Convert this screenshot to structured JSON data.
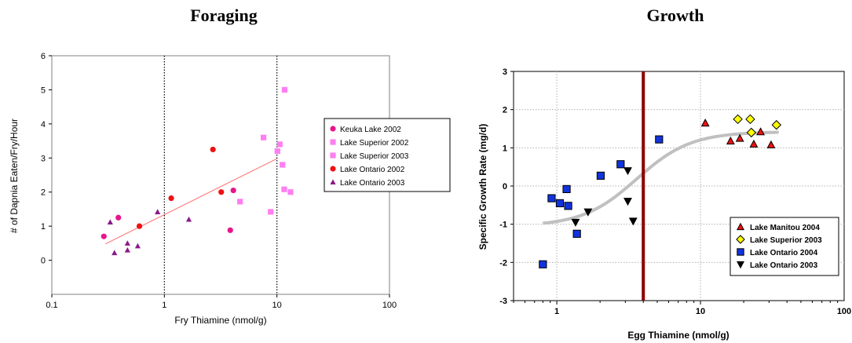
{
  "chart_data": [
    {
      "type": "scatter",
      "title": "Foraging",
      "xlabel": "Fry Thiamine (nmol/g)",
      "ylabel": "# of Dapnia Eaten/Fry/Hour",
      "xscale": "log",
      "xlim": [
        0.1,
        100
      ],
      "ylim": [
        -1,
        6
      ],
      "xticks": [
        "0.1",
        "1",
        "10",
        "100"
      ],
      "yticks": [
        "0",
        "1",
        "2",
        "3",
        "4",
        "5",
        "6"
      ],
      "grid": false,
      "legend_position": "right",
      "reference_lines_x": [
        1,
        10
      ],
      "trendline": {
        "x": [
          0.3,
          10
        ],
        "y": [
          0.48,
          2.98
        ],
        "color": "#ff6b6b"
      },
      "series": [
        {
          "name": "Keuka Lake 2002",
          "marker": "circle",
          "color": "#e8158a",
          "points": [
            [
              0.29,
              0.7
            ],
            [
              0.39,
              1.25
            ],
            [
              4.1,
              2.05
            ],
            [
              3.85,
              0.88
            ]
          ]
        },
        {
          "name": "Lake Superior 2002",
          "marker": "square",
          "color": "#ff7ff0",
          "points": [
            [
              7.6,
              3.6
            ],
            [
              4.7,
              1.72
            ],
            [
              11.2,
              2.8
            ],
            [
              11.6,
              2.08
            ],
            [
              13.2,
              2.0
            ],
            [
              8.8,
              1.42
            ]
          ]
        },
        {
          "name": "Lake Superior 2003",
          "marker": "square",
          "color": "#ff7ff0",
          "points": [
            [
              11.7,
              5.0
            ],
            [
              10.6,
              3.4
            ],
            [
              10.1,
              3.2
            ]
          ]
        },
        {
          "name": "Lake Ontario 2002",
          "marker": "circle",
          "color": "#ee1111",
          "points": [
            [
              2.7,
              3.25
            ],
            [
              1.15,
              1.82
            ],
            [
              3.2,
              2.0
            ],
            [
              0.6,
              1.0
            ]
          ]
        },
        {
          "name": "Lake Ontario 2003",
          "marker": "triangle",
          "color": "#8a1a8a",
          "points": [
            [
              0.33,
              1.12
            ],
            [
              0.87,
              1.42
            ],
            [
              1.65,
              1.2
            ],
            [
              0.47,
              0.5
            ],
            [
              0.58,
              0.42
            ],
            [
              0.36,
              0.22
            ],
            [
              0.47,
              0.3
            ]
          ]
        }
      ]
    },
    {
      "type": "scatter",
      "title": "Growth",
      "xlabel": "Egg Thiamine (nmol/g)",
      "ylabel": "Specific Growth Rate (mg/d)",
      "xscale": "log",
      "xlim": [
        0.5,
        100
      ],
      "ylim": [
        -3,
        3
      ],
      "xticks": [
        "1",
        "10",
        "100"
      ],
      "yticks": [
        "-3",
        "-2",
        "-1",
        "0",
        "1",
        "2",
        "3"
      ],
      "grid": true,
      "legend_position": "bottom-right",
      "threshold_x": 4.0,
      "fit_curve": {
        "color": "#c0c0c0",
        "lower": -1.05,
        "upper": 1.42,
        "midpoint": 3.6,
        "steepness": 2.3,
        "x_range": [
          0.8,
          35
        ]
      },
      "series": [
        {
          "name": "Lake Manitou 2004",
          "marker": "triangle",
          "color": "#ee1111",
          "points": [
            [
              10.8,
              1.65
            ],
            [
              16.2,
              1.18
            ],
            [
              18.8,
              1.25
            ],
            [
              23.5,
              1.1
            ],
            [
              26.2,
              1.42
            ],
            [
              31,
              1.08
            ]
          ]
        },
        {
          "name": "Lake Superior 2003",
          "marker": "diamond",
          "color": "#ffff00",
          "points": [
            [
              18.2,
              1.75
            ],
            [
              22.2,
              1.75
            ],
            [
              22.6,
              1.4
            ],
            [
              33.8,
              1.6
            ]
          ]
        },
        {
          "name": "Lake Ontario 2004",
          "marker": "square",
          "color": "#1133dd",
          "points": [
            [
              0.8,
              -2.05
            ],
            [
              0.92,
              -0.32
            ],
            [
              1.05,
              -0.45
            ],
            [
              1.17,
              -0.08
            ],
            [
              1.2,
              -0.52
            ],
            [
              1.38,
              -1.25
            ],
            [
              2.02,
              0.27
            ],
            [
              2.78,
              0.57
            ],
            [
              5.15,
              1.22
            ]
          ]
        },
        {
          "name": "Lake Ontario 2003",
          "marker": "triangle-down",
          "color": "#000000",
          "points": [
            [
              1.35,
              -0.95
            ],
            [
              1.65,
              -0.68
            ],
            [
              3.12,
              0.4
            ],
            [
              3.12,
              -0.4
            ],
            [
              3.4,
              -0.92
            ]
          ]
        }
      ]
    }
  ]
}
